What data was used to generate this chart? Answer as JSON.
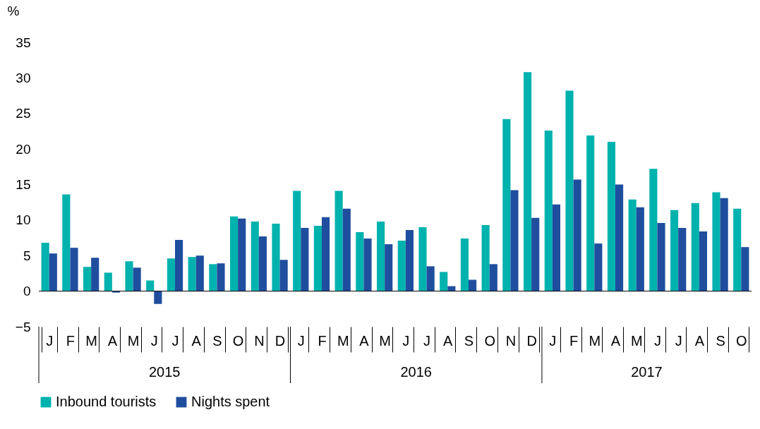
{
  "chart_data": {
    "type": "bar",
    "ylabel": "%",
    "categories": [
      "J",
      "F",
      "M",
      "A",
      "M",
      "J",
      "J",
      "A",
      "S",
      "O",
      "N",
      "D",
      "J",
      "F",
      "M",
      "A",
      "M",
      "J",
      "J",
      "A",
      "S",
      "O",
      "N",
      "D",
      "J",
      "F",
      "M",
      "A",
      "M",
      "J",
      "J",
      "A",
      "S",
      "O"
    ],
    "series": [
      {
        "name": "Inbound tourists",
        "color": "#00b2ae",
        "values": [
          6.8,
          13.6,
          3.4,
          2.6,
          4.2,
          1.5,
          4.6,
          4.8,
          3.8,
          10.5,
          9.8,
          9.5,
          14.1,
          9.2,
          14.1,
          8.3,
          9.8,
          7.1,
          9.0,
          2.7,
          7.4,
          9.3,
          24.2,
          30.8,
          22.6,
          28.2,
          21.9,
          21.0,
          12.9,
          17.2,
          11.4,
          12.4,
          13.9,
          11.6
        ]
      },
      {
        "name": "Nights spent",
        "color": "#1f4e9e",
        "values": [
          5.3,
          6.1,
          4.7,
          -0.2,
          3.3,
          -1.8,
          7.2,
          5.0,
          3.9,
          10.2,
          7.7,
          4.4,
          8.9,
          10.4,
          11.6,
          7.4,
          6.6,
          8.6,
          3.5,
          0.7,
          1.6,
          3.8,
          14.2,
          10.3,
          12.2,
          15.7,
          6.7,
          15.0,
          11.8,
          9.6,
          8.9,
          8.4,
          13.1,
          6.2
        ]
      }
    ],
    "annotations": [
      "2015",
      "2016",
      "2017"
    ],
    "ylim": [
      -5,
      35
    ],
    "yticks": [
      -5,
      0,
      5,
      10,
      15,
      20,
      25,
      30,
      35
    ],
    "ref_lines": [
      {
        "axis": "y",
        "value": 0
      }
    ],
    "grid": false,
    "legend": "bottom"
  }
}
